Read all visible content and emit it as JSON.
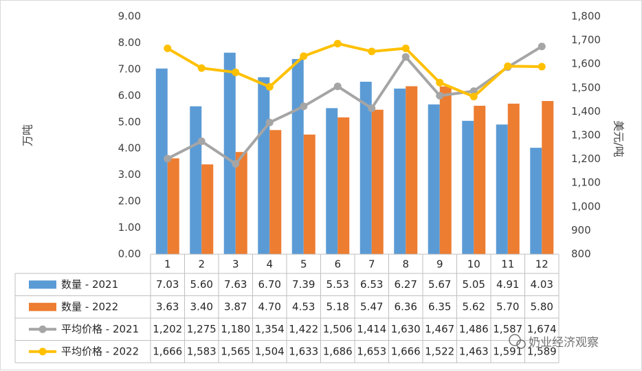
{
  "chart_data": {
    "type": "bar",
    "categories": [
      "1",
      "2",
      "3",
      "4",
      "5",
      "6",
      "7",
      "8",
      "9",
      "10",
      "11",
      "12"
    ],
    "series": [
      {
        "name": "数量 - 2021",
        "kind": "bar",
        "axis": "left",
        "color": "#5b9bd5",
        "values": [
          7.03,
          5.6,
          7.63,
          6.7,
          7.39,
          5.53,
          6.53,
          6.27,
          5.67,
          5.05,
          4.91,
          4.03
        ],
        "labels": [
          "7.03",
          "5.60",
          "7.63",
          "6.70",
          "7.39",
          "5.53",
          "6.53",
          "6.27",
          "5.67",
          "5.05",
          "4.91",
          "4.03"
        ]
      },
      {
        "name": "数量 - 2022",
        "kind": "bar",
        "axis": "left",
        "color": "#ed7d31",
        "values": [
          3.63,
          3.4,
          3.87,
          4.7,
          4.53,
          5.18,
          5.47,
          6.36,
          6.35,
          5.62,
          5.7,
          5.8
        ],
        "labels": [
          "3.63",
          "3.40",
          "3.87",
          "4.70",
          "4.53",
          "5.18",
          "5.47",
          "6.36",
          "6.35",
          "5.62",
          "5.70",
          "5.80"
        ]
      },
      {
        "name": "平均价格 - 2021",
        "kind": "line",
        "axis": "right",
        "color": "#a5a5a5",
        "values": [
          1202,
          1275,
          1180,
          1354,
          1422,
          1506,
          1414,
          1630,
          1467,
          1486,
          1587,
          1674
        ],
        "labels": [
          "1,202",
          "1,275",
          "1,180",
          "1,354",
          "1,422",
          "1,506",
          "1,414",
          "1,630",
          "1,467",
          "1,486",
          "1,587",
          "1,674"
        ]
      },
      {
        "name": "平均价格 - 2022",
        "kind": "line",
        "axis": "right",
        "color": "#ffc000",
        "values": [
          1666,
          1583,
          1565,
          1504,
          1633,
          1686,
          1653,
          1666,
          1522,
          1463,
          1591,
          1589
        ],
        "labels": [
          "1,666",
          "1,583",
          "1,565",
          "1,504",
          "1,633",
          "1,686",
          "1,653",
          "1,666",
          "1,522",
          "1,463",
          "1,591",
          "1,589"
        ]
      }
    ],
    "ylabel": "万吨",
    "y2label": "美元/吨",
    "ylim": [
      0,
      9
    ],
    "y2lim": [
      800,
      1800
    ],
    "yticks": [
      "0.00",
      "1.00",
      "2.00",
      "3.00",
      "4.00",
      "5.00",
      "6.00",
      "7.00",
      "8.00",
      "9.00"
    ],
    "y2ticks": [
      "800",
      "900",
      "1,000",
      "1,100",
      "1,200",
      "1,300",
      "1,400",
      "1,500",
      "1,600",
      "1,700",
      "1,800"
    ],
    "grid": false,
    "legend": "data-table"
  },
  "watermark": "奶业经济观察"
}
